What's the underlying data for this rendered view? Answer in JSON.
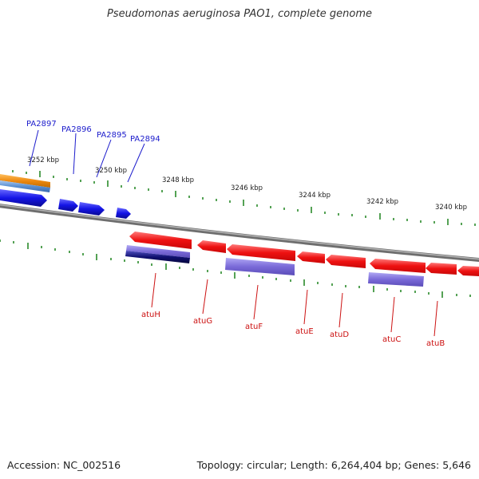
{
  "title": "Pseudomonas aeruginosa PAO1, complete genome",
  "footer": {
    "accession": "Accession: NC_002516",
    "summary": "Topology: circular; Length: 6,264,404 bp; Genes: 5,646"
  },
  "ticks": [
    "3252 kbp",
    "3250 kbp",
    "3248 kbp",
    "3246 kbp",
    "3244 kbp",
    "3242 kbp",
    "3240 kbp"
  ],
  "forward_genes": [
    "PA2897",
    "PA2896",
    "PA2895",
    "PA2894"
  ],
  "reverse_genes": [
    "atuH",
    "atuG",
    "atuF",
    "atuE",
    "atuD",
    "atuC",
    "atuB"
  ],
  "colors": {
    "forward_gene": "#1414e6",
    "reverse_gene": "#ee1111",
    "feature_orange": "#ee8a10",
    "feature_light_blue": "#5a8fd0",
    "feature_purple": "#7a6ad8",
    "feature_navy": "#101070",
    "tick": "#2a8a2a",
    "backbone": "#808080"
  }
}
